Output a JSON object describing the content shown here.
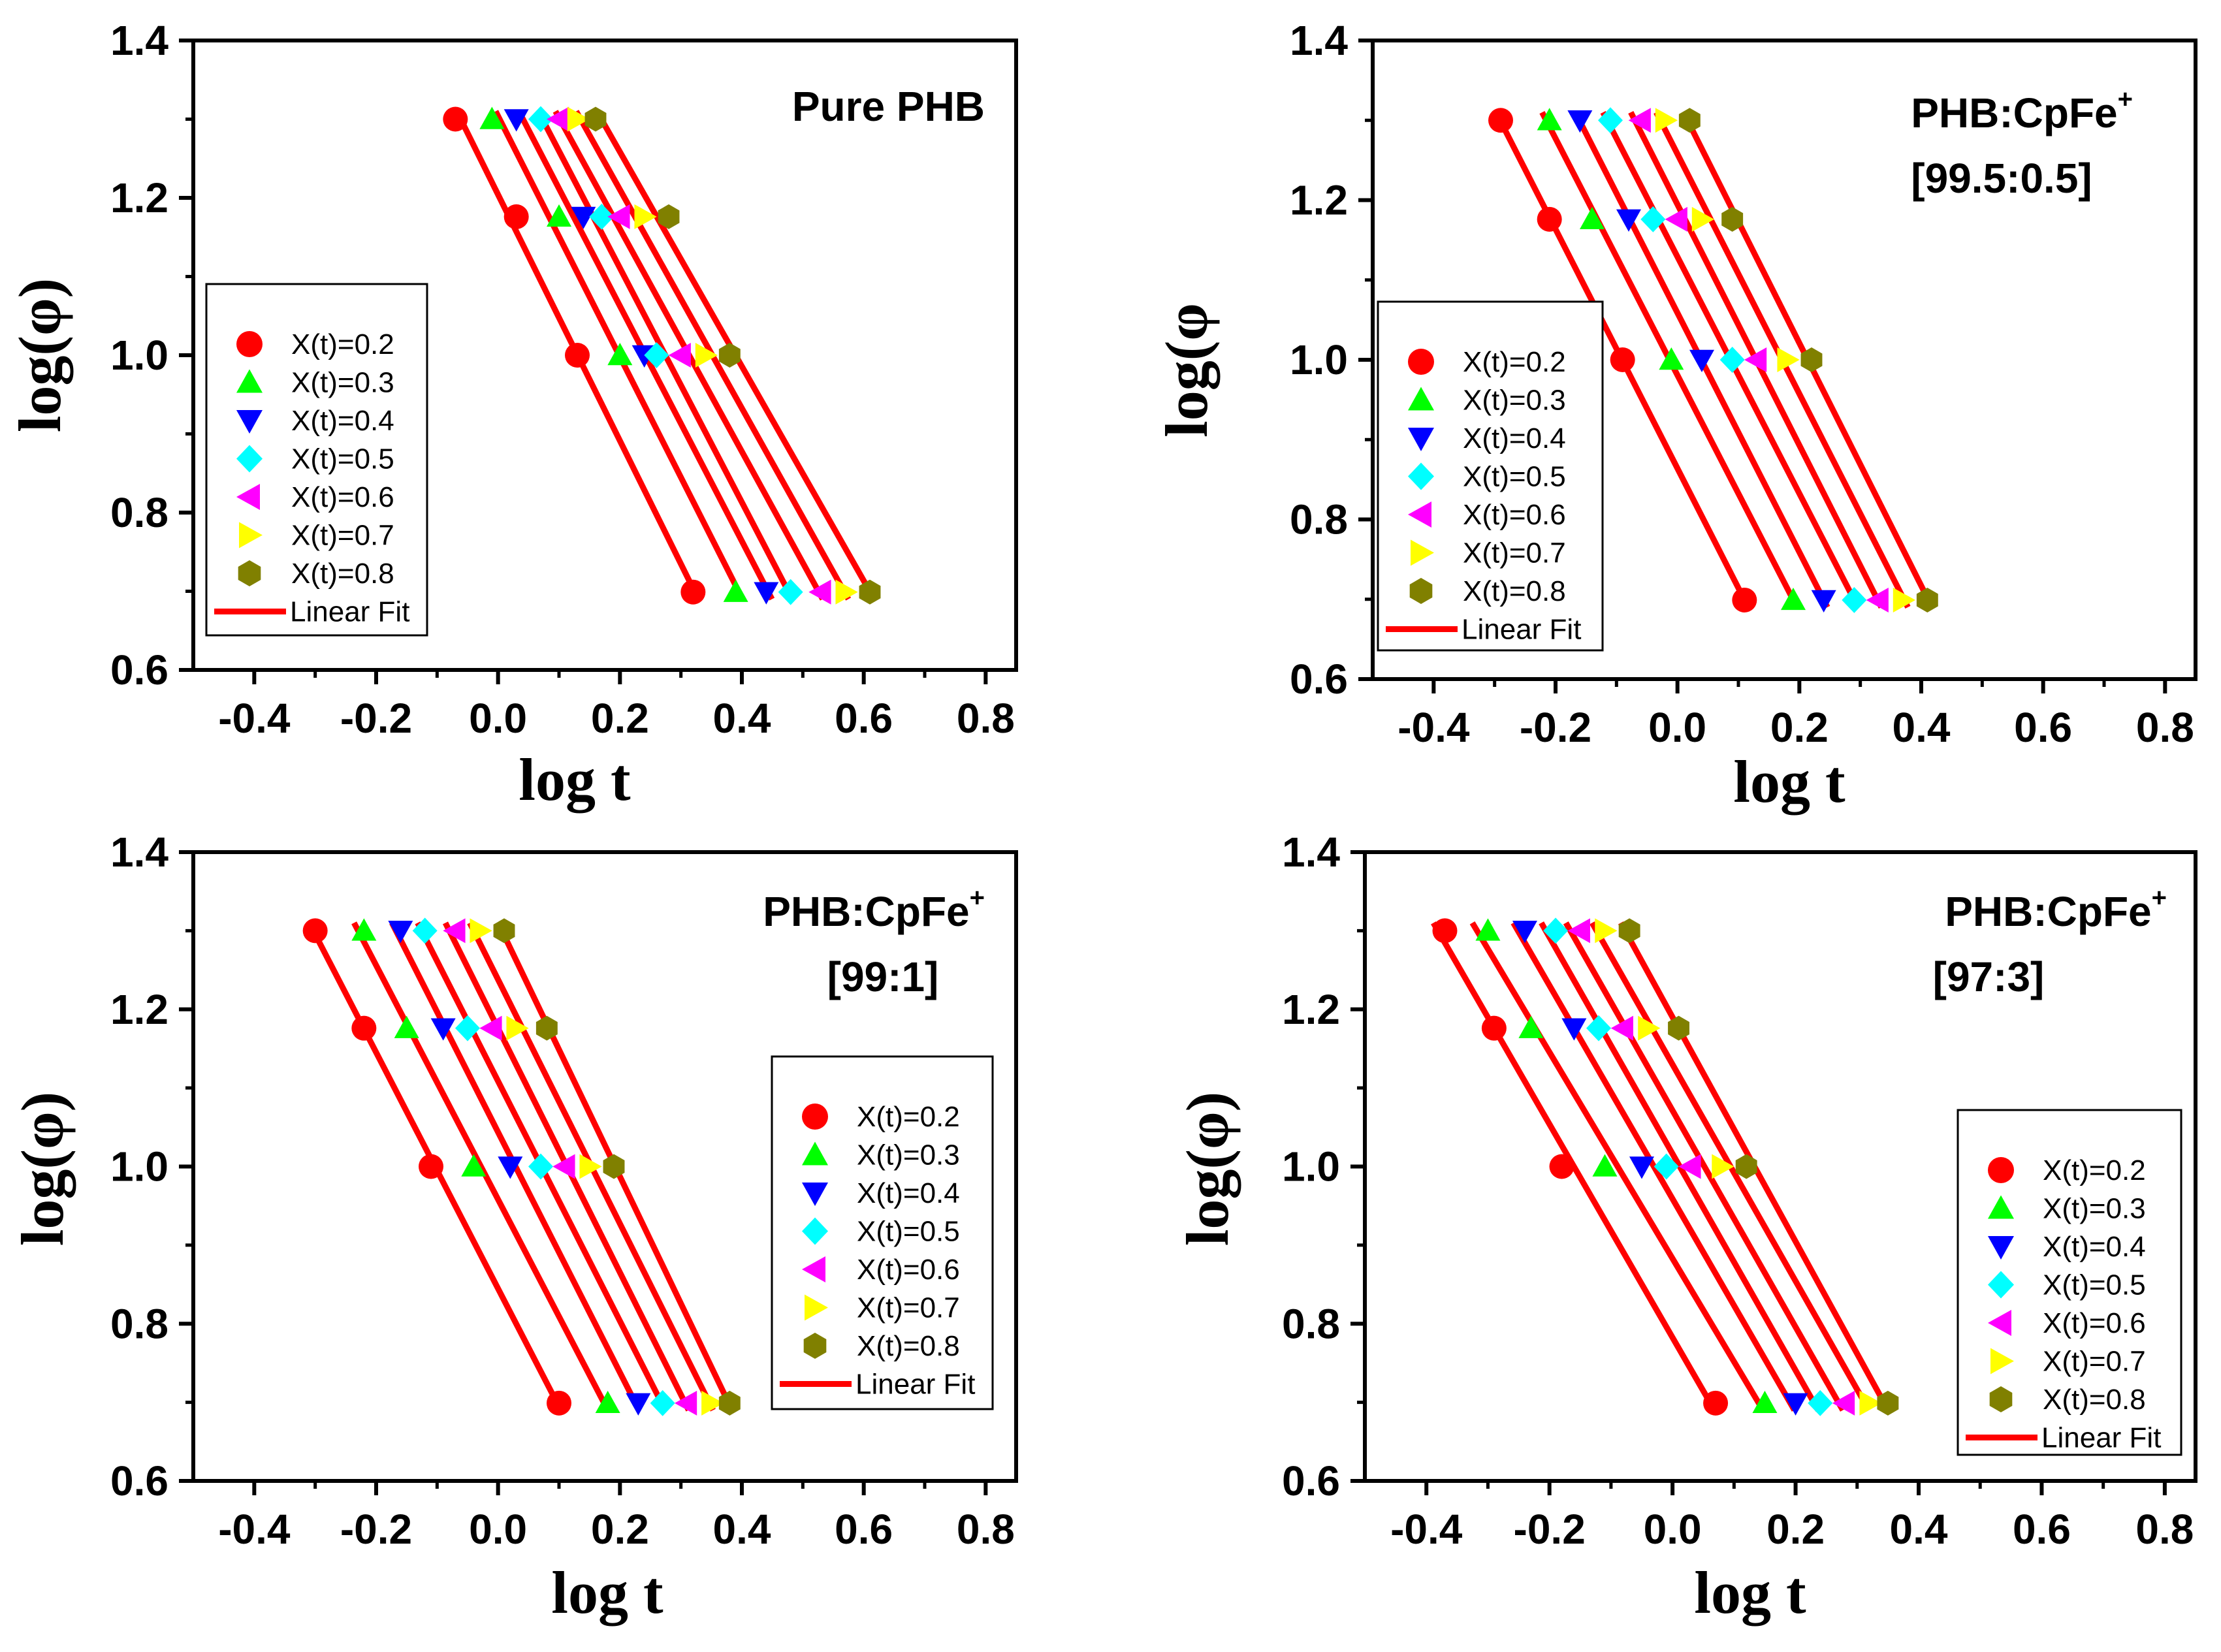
{
  "chart_data": [
    {
      "type": "scatter",
      "title": "Pure PHB",
      "title_sup": "",
      "title_line2": "",
      "xlabel": "log t",
      "ylabel": "log(φ)",
      "xlim": [
        -0.5,
        0.85
      ],
      "ylim": [
        0.6,
        1.4
      ],
      "xticks": [
        -0.4,
        -0.2,
        0.0,
        0.2,
        0.4,
        0.6,
        0.8
      ],
      "xtick_labels": [
        "-0.4",
        "-0.2",
        "0.0",
        "0.2",
        "0.4",
        "0.6",
        "0.8"
      ],
      "yticks": [
        0.6,
        0.8,
        1.0,
        1.2,
        1.4
      ],
      "ytick_labels": [
        "0.6",
        "0.8",
        "1.0",
        "1.2",
        "1.4"
      ],
      "legend_position": "middle-left",
      "fit_label": "Linear Fit",
      "series": [
        {
          "name": "X(t)=0.2",
          "marker": "circle",
          "color": "#ff0000",
          "x": [
            -0.07,
            0.03,
            0.13,
            0.32
          ],
          "y": [
            1.3,
            1.176,
            1.0,
            0.699
          ]
        },
        {
          "name": "X(t)=0.3",
          "marker": "triangle-up",
          "color": "#00ff00",
          "x": [
            -0.01,
            0.1,
            0.2,
            0.39
          ],
          "y": [
            1.3,
            1.176,
            1.0,
            0.699
          ]
        },
        {
          "name": "X(t)=0.4",
          "marker": "triangle-down",
          "color": "#0000ff",
          "x": [
            0.03,
            0.14,
            0.24,
            0.44
          ],
          "y": [
            1.3,
            1.176,
            1.0,
            0.699
          ]
        },
        {
          "name": "X(t)=0.5",
          "marker": "diamond",
          "color": "#00ffff",
          "x": [
            0.07,
            0.17,
            0.26,
            0.48
          ],
          "y": [
            1.3,
            1.176,
            1.0,
            0.699
          ]
        },
        {
          "name": "X(t)=0.6",
          "marker": "triangle-left",
          "color": "#ff00ff",
          "x": [
            0.1,
            0.2,
            0.3,
            0.53
          ],
          "y": [
            1.3,
            1.176,
            1.0,
            0.699
          ]
        },
        {
          "name": "X(t)=0.7",
          "marker": "triangle-right",
          "color": "#ffff00",
          "x": [
            0.13,
            0.24,
            0.34,
            0.57
          ],
          "y": [
            1.3,
            1.176,
            1.0,
            0.699
          ]
        },
        {
          "name": "X(t)=0.8",
          "marker": "hexagon",
          "color": "#808000",
          "x": [
            0.16,
            0.28,
            0.38,
            0.61
          ],
          "y": [
            1.3,
            1.176,
            1.0,
            0.699
          ]
        }
      ]
    },
    {
      "type": "scatter",
      "title": "PHB:CpFe",
      "title_sup": "+",
      "title_line2": "[99.5:0.5]",
      "xlabel": "log t",
      "ylabel": "log(φ",
      "xlim": [
        -0.5,
        0.85
      ],
      "ylim": [
        0.6,
        1.4
      ],
      "xticks": [
        -0.4,
        -0.2,
        0.0,
        0.2,
        0.4,
        0.6,
        0.8
      ],
      "xtick_labels": [
        "-0.4",
        "-0.2",
        "0.0",
        "0.2",
        "0.4",
        "0.6",
        "0.8"
      ],
      "yticks": [
        0.6,
        0.8,
        1.0,
        1.2,
        1.4
      ],
      "ytick_labels": [
        "0.6",
        "0.8",
        "1.0",
        "1.2",
        "1.4"
      ],
      "legend_position": "middle-left",
      "fit_label": "Linear Fit",
      "series": [
        {
          "name": "X(t)=0.2",
          "marker": "circle",
          "color": "#ff0000",
          "x": [
            -0.29,
            -0.21,
            -0.09,
            0.11
          ],
          "y": [
            1.3,
            1.176,
            1.0,
            0.699
          ]
        },
        {
          "name": "X(t)=0.3",
          "marker": "triangle-up",
          "color": "#00ff00",
          "x": [
            -0.21,
            -0.14,
            -0.01,
            0.19
          ],
          "y": [
            1.3,
            1.176,
            1.0,
            0.699
          ]
        },
        {
          "name": "X(t)=0.4",
          "marker": "triangle-down",
          "color": "#0000ff",
          "x": [
            -0.16,
            -0.08,
            0.04,
            0.24
          ],
          "y": [
            1.3,
            1.176,
            1.0,
            0.699
          ]
        },
        {
          "name": "X(t)=0.5",
          "marker": "diamond",
          "color": "#00ffff",
          "x": [
            -0.11,
            -0.04,
            0.09,
            0.29
          ],
          "y": [
            1.3,
            1.176,
            1.0,
            0.699
          ]
        },
        {
          "name": "X(t)=0.6",
          "marker": "triangle-left",
          "color": "#ff00ff",
          "x": [
            -0.06,
            0.0,
            0.13,
            0.33
          ],
          "y": [
            1.3,
            1.176,
            1.0,
            0.699
          ]
        },
        {
          "name": "X(t)=0.7",
          "marker": "triangle-right",
          "color": "#ffff00",
          "x": [
            -0.02,
            0.04,
            0.18,
            0.37
          ],
          "y": [
            1.3,
            1.176,
            1.0,
            0.699
          ]
        },
        {
          "name": "X(t)=0.8",
          "marker": "hexagon",
          "color": "#808000",
          "x": [
            0.02,
            0.09,
            0.22,
            0.41
          ],
          "y": [
            1.3,
            1.176,
            1.0,
            0.699
          ]
        }
      ]
    },
    {
      "type": "scatter",
      "title": "PHB:CpFe",
      "title_sup": "+",
      "title_line2": "[99:1]",
      "xlabel": "log t",
      "ylabel": "log(φ)",
      "xlim": [
        -0.5,
        0.85
      ],
      "ylim": [
        0.6,
        1.4
      ],
      "xticks": [
        -0.4,
        -0.2,
        0.0,
        0.2,
        0.4,
        0.6,
        0.8
      ],
      "xtick_labels": [
        "-0.4",
        "-0.2",
        "0.0",
        "0.2",
        "0.4",
        "0.6",
        "0.8"
      ],
      "yticks": [
        0.6,
        0.8,
        1.0,
        1.2,
        1.4
      ],
      "ytick_labels": [
        "0.6",
        "0.8",
        "1.0",
        "1.2",
        "1.4"
      ],
      "legend_position": "middle-right",
      "fit_label": "Linear Fit",
      "series": [
        {
          "name": "X(t)=0.2",
          "marker": "circle",
          "color": "#ff0000",
          "x": [
            -0.3,
            -0.22,
            -0.11,
            0.1
          ],
          "y": [
            1.3,
            1.176,
            1.0,
            0.699
          ]
        },
        {
          "name": "X(t)=0.3",
          "marker": "triangle-up",
          "color": "#00ff00",
          "x": [
            -0.22,
            -0.15,
            -0.04,
            0.18
          ],
          "y": [
            1.3,
            1.176,
            1.0,
            0.699
          ]
        },
        {
          "name": "X(t)=0.4",
          "marker": "triangle-down",
          "color": "#0000ff",
          "x": [
            -0.16,
            -0.09,
            0.02,
            0.23
          ],
          "y": [
            1.3,
            1.176,
            1.0,
            0.699
          ]
        },
        {
          "name": "X(t)=0.5",
          "marker": "diamond",
          "color": "#00ffff",
          "x": [
            -0.12,
            -0.05,
            0.07,
            0.27
          ],
          "y": [
            1.3,
            1.176,
            1.0,
            0.699
          ]
        },
        {
          "name": "X(t)=0.6",
          "marker": "triangle-left",
          "color": "#ff00ff",
          "x": [
            -0.07,
            -0.01,
            0.11,
            0.31
          ],
          "y": [
            1.3,
            1.176,
            1.0,
            0.699
          ]
        },
        {
          "name": "X(t)=0.7",
          "marker": "triangle-right",
          "color": "#ffff00",
          "x": [
            -0.03,
            0.03,
            0.15,
            0.35
          ],
          "y": [
            1.3,
            1.176,
            1.0,
            0.699
          ]
        },
        {
          "name": "X(t)=0.8",
          "marker": "hexagon",
          "color": "#808000",
          "x": [
            0.01,
            0.08,
            0.19,
            0.38
          ],
          "y": [
            1.3,
            1.176,
            1.0,
            0.699
          ]
        }
      ]
    },
    {
      "type": "scatter",
      "title": "PHB:CpFe",
      "title_sup": "+",
      "title_line2": "[97:3]",
      "xlabel": "log t",
      "ylabel": "log(φ)",
      "xlim": [
        -0.5,
        0.85
      ],
      "ylim": [
        0.6,
        1.4
      ],
      "xticks": [
        -0.4,
        -0.2,
        0.0,
        0.2,
        0.4,
        0.6,
        0.8
      ],
      "xtick_labels": [
        "-0.4",
        "-0.2",
        "0.0",
        "0.2",
        "0.4",
        "0.6",
        "0.8"
      ],
      "yticks": [
        0.6,
        0.8,
        1.0,
        1.2,
        1.4
      ],
      "ytick_labels": [
        "0.6",
        "0.8",
        "1.0",
        "1.2",
        "1.4"
      ],
      "legend_position": "bottom-right",
      "fit_label": "Linear Fit",
      "series": [
        {
          "name": "X(t)=0.2",
          "marker": "circle",
          "color": "#ff0000",
          "x": [
            -0.37,
            -0.29,
            -0.18,
            0.07
          ],
          "y": [
            1.3,
            1.176,
            1.0,
            0.699
          ]
        },
        {
          "name": "X(t)=0.3",
          "marker": "triangle-up",
          "color": "#00ff00",
          "x": [
            -0.3,
            -0.23,
            -0.11,
            0.15
          ],
          "y": [
            1.3,
            1.176,
            1.0,
            0.699
          ]
        },
        {
          "name": "X(t)=0.4",
          "marker": "triangle-down",
          "color": "#0000ff",
          "x": [
            -0.24,
            -0.16,
            -0.05,
            0.2
          ],
          "y": [
            1.3,
            1.176,
            1.0,
            0.699
          ]
        },
        {
          "name": "X(t)=0.5",
          "marker": "diamond",
          "color": "#00ffff",
          "x": [
            -0.19,
            -0.12,
            -0.01,
            0.24
          ],
          "y": [
            1.3,
            1.176,
            1.0,
            0.699
          ]
        },
        {
          "name": "X(t)=0.6",
          "marker": "triangle-left",
          "color": "#ff00ff",
          "x": [
            -0.15,
            -0.08,
            0.03,
            0.28
          ],
          "y": [
            1.3,
            1.176,
            1.0,
            0.699
          ]
        },
        {
          "name": "X(t)=0.7",
          "marker": "triangle-right",
          "color": "#ffff00",
          "x": [
            -0.11,
            -0.04,
            0.08,
            0.32
          ],
          "y": [
            1.3,
            1.176,
            1.0,
            0.699
          ]
        },
        {
          "name": "X(t)=0.8",
          "marker": "hexagon",
          "color": "#808000",
          "x": [
            -0.07,
            0.01,
            0.12,
            0.35
          ],
          "y": [
            1.3,
            1.176,
            1.0,
            0.699
          ]
        }
      ]
    }
  ],
  "colors": {
    "fit_line": "#ff0000",
    "axis": "#000000",
    "background": "#ffffff"
  }
}
